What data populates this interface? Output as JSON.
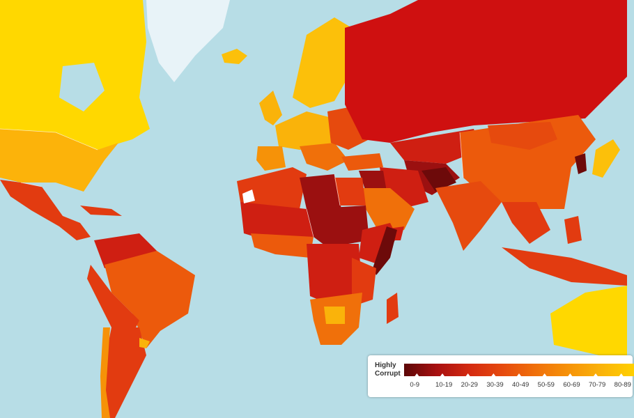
{
  "map": {
    "colors": {
      "water": "#b7dde6",
      "greenland": "#e8f3f8",
      "band_0_9": "#6d0a0a",
      "band_10_19": "#9b1010",
      "band_20_29": "#cf1f12",
      "band_30_39": "#e23b10",
      "band_40_49": "#ec5a0c",
      "band_50_59": "#f27d07",
      "band_60_69": "#f8a007",
      "band_70_79": "#fcc00a",
      "band_80_89": "#ffd800"
    }
  },
  "legend": {
    "title_line1": "Highly",
    "title_line2": "Corrupt",
    "ranges": [
      "0-9",
      "10-19",
      "20-29",
      "30-39",
      "40-49",
      "50-59",
      "60-69",
      "70-79",
      "80-89"
    ],
    "gradient": [
      "#5c0707",
      "#a81010",
      "#d42a10",
      "#e64a0e",
      "#f0700a",
      "#f69208",
      "#fab30a",
      "#ffd000"
    ]
  }
}
